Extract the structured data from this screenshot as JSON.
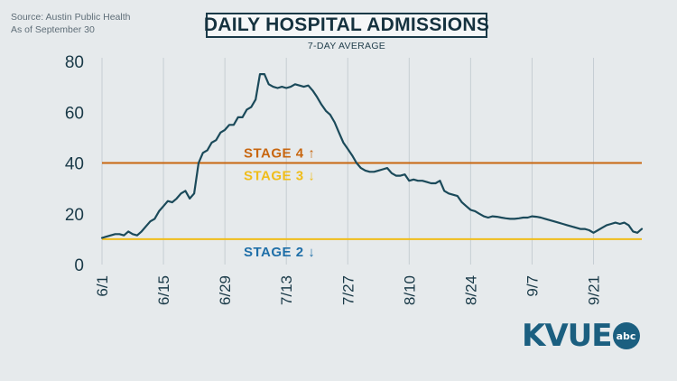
{
  "source_lines": [
    "Source: Austin Public Health",
    "As of September 30"
  ],
  "logo": {
    "text": "KVUE",
    "badge": "abc"
  },
  "colors": {
    "line": "#1b4a5a",
    "stage4": "#c8660f",
    "stage3": "#f0bd1a",
    "stage2": "#1f6fa8",
    "axis_text": "#1a3a48",
    "grid": "#c6ced3"
  },
  "chart_data": {
    "type": "line",
    "title": "DAILY HOSPITAL ADMISSIONS",
    "subtitle": "7-DAY AVERAGE",
    "ylim": [
      0,
      80
    ],
    "y_ticks": [
      0,
      20,
      40,
      60,
      80
    ],
    "x_start": "6/1",
    "x_ticks": [
      "6/1",
      "6/15",
      "6/29",
      "7/13",
      "7/27",
      "8/10",
      "8/24",
      "9/7",
      "9/21"
    ],
    "x_tick_days": [
      0,
      14,
      28,
      42,
      56,
      70,
      84,
      98,
      112
    ],
    "grid": "vertical",
    "thresholds": [
      {
        "label": "STAGE 4",
        "arrow": "↑",
        "value": 40,
        "line_color": "#c8660f",
        "label_color": "#c8660f"
      },
      {
        "label": "STAGE 3",
        "arrow": "↓",
        "value": 40,
        "line_color": "#c8660f",
        "label_color": "#f0bd1a"
      },
      {
        "label": "STAGE 2",
        "arrow": "↓",
        "value": 10,
        "line_color": "#f0bd1a",
        "label_color": "#1f6fa8"
      }
    ],
    "series": [
      {
        "values": [
          10.5,
          11,
          11.5,
          12,
          12,
          11.5,
          13,
          12,
          11.5,
          13,
          15,
          17,
          18,
          21,
          23,
          25,
          24.5,
          26,
          28,
          29,
          26,
          28,
          40,
          44,
          45,
          48,
          49,
          52,
          53,
          55,
          55,
          58,
          58,
          61,
          62,
          65,
          75,
          75,
          71,
          70,
          69.5,
          70,
          69.5,
          70,
          71,
          70.5,
          70,
          70.5,
          68.5,
          66,
          63,
          60.5,
          59,
          56,
          52,
          48,
          45.5,
          43,
          40,
          38,
          37,
          36.5,
          36.5,
          37,
          37.5,
          38,
          36,
          35,
          35,
          35.5,
          33,
          33.5,
          33,
          33,
          32.5,
          32,
          32,
          33,
          29,
          28,
          27.5,
          27,
          24.5,
          23,
          21.5,
          21,
          20,
          19,
          18.5,
          19,
          18.8,
          18.5,
          18.2,
          18,
          18,
          18.2,
          18.5,
          18.5,
          19,
          18.8,
          18.5,
          18,
          17.5,
          17,
          16.5,
          16,
          15.5,
          15,
          14.5,
          14,
          14,
          13.5,
          12.5,
          13.5,
          14.5,
          15.5,
          16,
          16.5,
          16,
          16.5,
          15.5,
          13,
          12.5,
          14
        ]
      }
    ]
  }
}
